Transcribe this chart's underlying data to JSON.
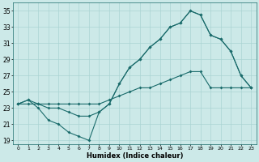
{
  "xlabel": "Humidex (Indice chaleur)",
  "bg_color": "#cce9e8",
  "line_color": "#1a6b6b",
  "grid_color": "#aad4d3",
  "xlim": [
    -0.5,
    23.5
  ],
  "ylim": [
    18.5,
    36
  ],
  "xticks": [
    0,
    1,
    2,
    3,
    4,
    5,
    6,
    7,
    8,
    9,
    10,
    11,
    12,
    13,
    14,
    15,
    16,
    17,
    18,
    19,
    20,
    21,
    22,
    23
  ],
  "yticks": [
    19,
    21,
    23,
    25,
    27,
    29,
    31,
    33,
    35
  ],
  "series1_x": [
    0,
    1,
    2,
    3,
    4,
    5,
    6,
    7,
    8,
    9,
    10,
    11,
    12,
    13,
    14,
    15,
    16,
    17,
    18,
    19,
    20,
    21,
    22,
    23
  ],
  "series1_y": [
    23.5,
    24.0,
    23.0,
    21.5,
    21.0,
    20.0,
    19.5,
    19.0,
    22.5,
    23.5,
    26.0,
    28.0,
    29.0,
    30.5,
    31.5,
    33.0,
    33.5,
    35.0,
    34.5,
    32.0,
    31.5,
    30.0,
    27.0,
    25.5
  ],
  "series2_x": [
    0,
    1,
    2,
    3,
    4,
    5,
    6,
    7,
    8,
    9,
    10,
    11,
    12,
    13,
    14,
    15,
    16,
    17,
    18,
    19,
    20,
    21,
    22,
    23
  ],
  "series2_y": [
    23.5,
    24.0,
    23.5,
    23.0,
    23.0,
    22.5,
    22.0,
    22.0,
    22.5,
    23.5,
    26.0,
    28.0,
    29.0,
    30.5,
    31.5,
    33.0,
    33.5,
    35.0,
    34.5,
    32.0,
    31.5,
    30.0,
    27.0,
    25.5
  ],
  "series3_x": [
    0,
    1,
    2,
    3,
    4,
    5,
    6,
    7,
    8,
    9,
    10,
    11,
    12,
    13,
    14,
    15,
    16,
    17,
    18,
    19,
    20,
    21,
    22,
    23
  ],
  "series3_y": [
    23.5,
    23.5,
    23.5,
    23.5,
    23.5,
    23.5,
    23.5,
    23.5,
    23.5,
    24.0,
    24.5,
    25.0,
    25.5,
    25.5,
    26.0,
    26.5,
    27.0,
    27.5,
    27.5,
    25.5,
    25.5,
    25.5,
    25.5,
    25.5
  ]
}
